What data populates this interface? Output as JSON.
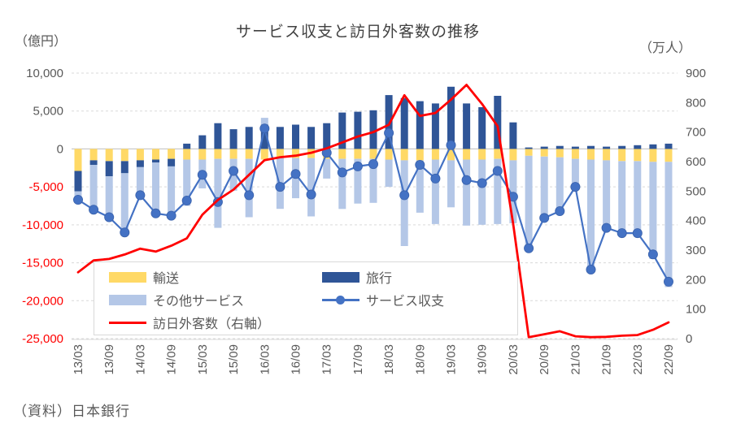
{
  "title": "サービス収支と訪日外客数の推移",
  "source": "（資料）日本銀行",
  "left_axis": {
    "unit": "（億円）",
    "tick_labels": [
      "10,000",
      "5,000",
      "0",
      "-5,000",
      "-10,000",
      "-15,000",
      "-20,000",
      "-25,000"
    ],
    "tick_values": [
      10000,
      5000,
      0,
      -5000,
      -10000,
      -15000,
      -20000,
      -25000
    ],
    "text_color": "#595959",
    "negative_color": "#ff0000"
  },
  "right_axis": {
    "unit": "（万人）",
    "tick_labels": [
      "900",
      "800",
      "700",
      "600",
      "500",
      "400",
      "300",
      "200",
      "100",
      "0"
    ],
    "tick_values": [
      900,
      800,
      700,
      600,
      500,
      400,
      300,
      200,
      100,
      0
    ],
    "text_color": "#595959"
  },
  "x_axis": {
    "label_every": 2,
    "text_color": "#595959"
  },
  "chart_data": {
    "type": "combo-stacked-bar-line",
    "categories": [
      "13/03",
      "13/06",
      "13/09",
      "13/12",
      "14/03",
      "14/06",
      "14/09",
      "14/12",
      "15/03",
      "15/06",
      "15/09",
      "15/12",
      "16/03",
      "16/06",
      "16/09",
      "16/12",
      "17/03",
      "17/06",
      "17/09",
      "17/12",
      "18/03",
      "18/06",
      "18/09",
      "18/12",
      "19/03",
      "19/06",
      "19/09",
      "19/12",
      "20/03",
      "20/06",
      "20/09",
      "20/12",
      "21/03",
      "21/06",
      "21/09",
      "21/12",
      "22/03",
      "22/06",
      "22/09"
    ],
    "left_ylim": [
      -25000,
      10000
    ],
    "right_ylim": [
      0,
      900
    ],
    "grid": "horizontal dashed at left-axis ticks, solid at zero",
    "legend_position": "inside lower-left, white box",
    "bar_series": [
      {
        "name": "輸送",
        "axis": "left",
        "color": "#FFD966",
        "values": [
          -2900,
          -1500,
          -1600,
          -1600,
          -1500,
          -1400,
          -1300,
          -1400,
          -1400,
          -1300,
          -1300,
          -1300,
          -1400,
          -1200,
          -1200,
          -1200,
          -1300,
          -1300,
          -1300,
          -1300,
          -1400,
          -1500,
          -1500,
          -1400,
          -1500,
          -1400,
          -1400,
          -1300,
          -1500,
          -900,
          -1000,
          -1100,
          -1300,
          -1400,
          -1500,
          -1600,
          -1600,
          -1700,
          -1700
        ]
      },
      {
        "name": "旅行",
        "axis": "left",
        "color": "#2F5597",
        "values": [
          -2700,
          -600,
          -2000,
          -1600,
          -900,
          -400,
          -1000,
          700,
          1800,
          3400,
          2600,
          2900,
          3200,
          2900,
          3200,
          2900,
          3400,
          4800,
          4900,
          5100,
          7100,
          6700,
          6300,
          6000,
          8200,
          6000,
          5500,
          7000,
          3500,
          200,
          300,
          400,
          300,
          400,
          300,
          400,
          500,
          600,
          700
        ]
      },
      {
        "name": "その他サービス",
        "axis": "left",
        "color": "#B4C7E7",
        "values": [
          -1100,
          -5900,
          -5400,
          -7800,
          -3700,
          -6700,
          -6500,
          -6100,
          -3800,
          -9100,
          -4200,
          -7700,
          900,
          -6700,
          -5300,
          -7700,
          -2600,
          -6600,
          -5900,
          -5800,
          -3600,
          -11300,
          -6900,
          -8500,
          -6200,
          -8700,
          -8600,
          -8600,
          -8300,
          -12400,
          -8400,
          -7500,
          -4000,
          -14900,
          -9200,
          -9900,
          -10000,
          -12800,
          -16500
        ]
      }
    ],
    "line_series": [
      {
        "name": "サービス収支",
        "axis": "left",
        "color": "#4472C4",
        "marker": true,
        "values": [
          -6700,
          -8000,
          -9000,
          -11000,
          -6100,
          -8500,
          -8800,
          -6800,
          -3400,
          -7000,
          -2900,
          -6100,
          2700,
          -5000,
          -3300,
          -6000,
          -500,
          -3100,
          -2300,
          -2000,
          2100,
          -6100,
          -2100,
          -3900,
          500,
          -4100,
          -4500,
          -2900,
          -6300,
          -13100,
          -9100,
          -8200,
          -5000,
          -15900,
          -10400,
          -11100,
          -11100,
          -13900,
          -17500
        ]
      },
      {
        "name": "訪日外客数（右軸）",
        "axis": "right",
        "color": "#FF0000",
        "marker": false,
        "values": [
          225,
          265,
          270,
          285,
          305,
          295,
          315,
          340,
          420,
          470,
          505,
          555,
          605,
          615,
          620,
          630,
          645,
          665,
          685,
          700,
          725,
          825,
          755,
          765,
          810,
          860,
          795,
          720,
          390,
          5,
          15,
          25,
          8,
          5,
          6,
          10,
          12,
          30,
          55
        ]
      }
    ]
  }
}
